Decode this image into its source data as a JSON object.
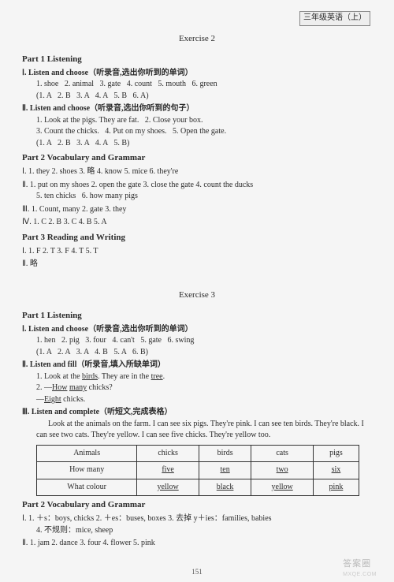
{
  "header": {
    "right": "三年级英语（上）"
  },
  "ex2": {
    "title": "Exercise 2",
    "part1": {
      "title": "Part 1   Listening",
      "s1": {
        "head": "Ⅰ. Listen and choose（听录音,选出你听到的单词）",
        "items": "1. shoe   2. animal   3. gate   4. count   5. mouth   6. green",
        "answers": "(1. A   2. B   3. A   4. A   5. B   6. A)"
      },
      "s2": {
        "head": "Ⅱ. Listen and choose（听录音,选出你听到的句子）",
        "l1": "1. Look at the pigs. They are fat.   2. Close your box.",
        "l2": "3. Count the chicks.   4. Put on my shoes.   5. Open the gate.",
        "answers": "(1. A   2. B   3. A   4. A   5. B)"
      }
    },
    "part2": {
      "title": "Part 2   Vocabulary and Grammar",
      "s1": "Ⅰ. 1. they   2. shoes   3. 略   4. know   5. mice   6. they're",
      "s2a": "Ⅱ. 1. put on my shoes   2. open the gate   3. close the gate   4. count the ducks",
      "s2b": "5. ten chicks   6. how many pigs",
      "s3": "Ⅲ. 1. Count, many   2. gate   3. they",
      "s4": "Ⅳ. 1. C   2. B   3. C   4. B   5. A"
    },
    "part3": {
      "title": "Part 3   Reading and Writing",
      "s1": "Ⅰ. 1. F   2. T   3. F   4. T   5. T",
      "s2": "Ⅱ. 略"
    }
  },
  "ex3": {
    "title": "Exercise 3",
    "part1": {
      "title": "Part 1   Listening",
      "s1": {
        "head": "Ⅰ. Listen and choose（听录音,选出你听到的单词）",
        "items": "1. hen   2. pig   3. four   4. can't   5. gate   6. swing",
        "answers": "(1. A   2. A   3. A   4. B   5. A   6. B)"
      },
      "s2": {
        "head": "Ⅱ. Listen and fill（听录音,填入所缺单词）",
        "l1a": "1. Look at the ",
        "l1b": "birds",
        "l1c": ". They are in the ",
        "l1d": "tree",
        "l1e": ".",
        "l2a": "2. —",
        "l2b": "How",
        "l2c": " ",
        "l2d": "many",
        "l2e": " chicks?",
        "l3a": "   —",
        "l3b": "Eight",
        "l3c": " chicks."
      },
      "s3": {
        "head": "Ⅲ. Listen and complete（听短文,完成表格）",
        "para": "Look at the animals on the farm. I can see six pigs. They're pink. I can see ten birds. They're black. I can see two cats. They're yellow. I can see five chicks. They're yellow too.",
        "table": {
          "r1": [
            "Animals",
            "chicks",
            "birds",
            "cats",
            "pigs"
          ],
          "r2": [
            "How many",
            "five",
            "ten",
            "two",
            "six"
          ],
          "r3": [
            "What colour",
            "yellow",
            "black",
            "yellow",
            "pink"
          ]
        }
      }
    },
    "part2": {
      "title": "Part 2   Vocabulary and Grammar",
      "s1": "Ⅰ. 1. ＋s：boys, chicks   2. ＋es：buses, boxes   3. 去掉 y＋ies：families, babies",
      "s1b": "4. 不规则：mice, sheep",
      "s2": "Ⅱ. 1. jam   2. dance   3. four   4. flower   5. pink"
    }
  },
  "footer": {
    "page": "151",
    "watermark": "答案圈",
    "wmurl": "MXQE.COM"
  }
}
